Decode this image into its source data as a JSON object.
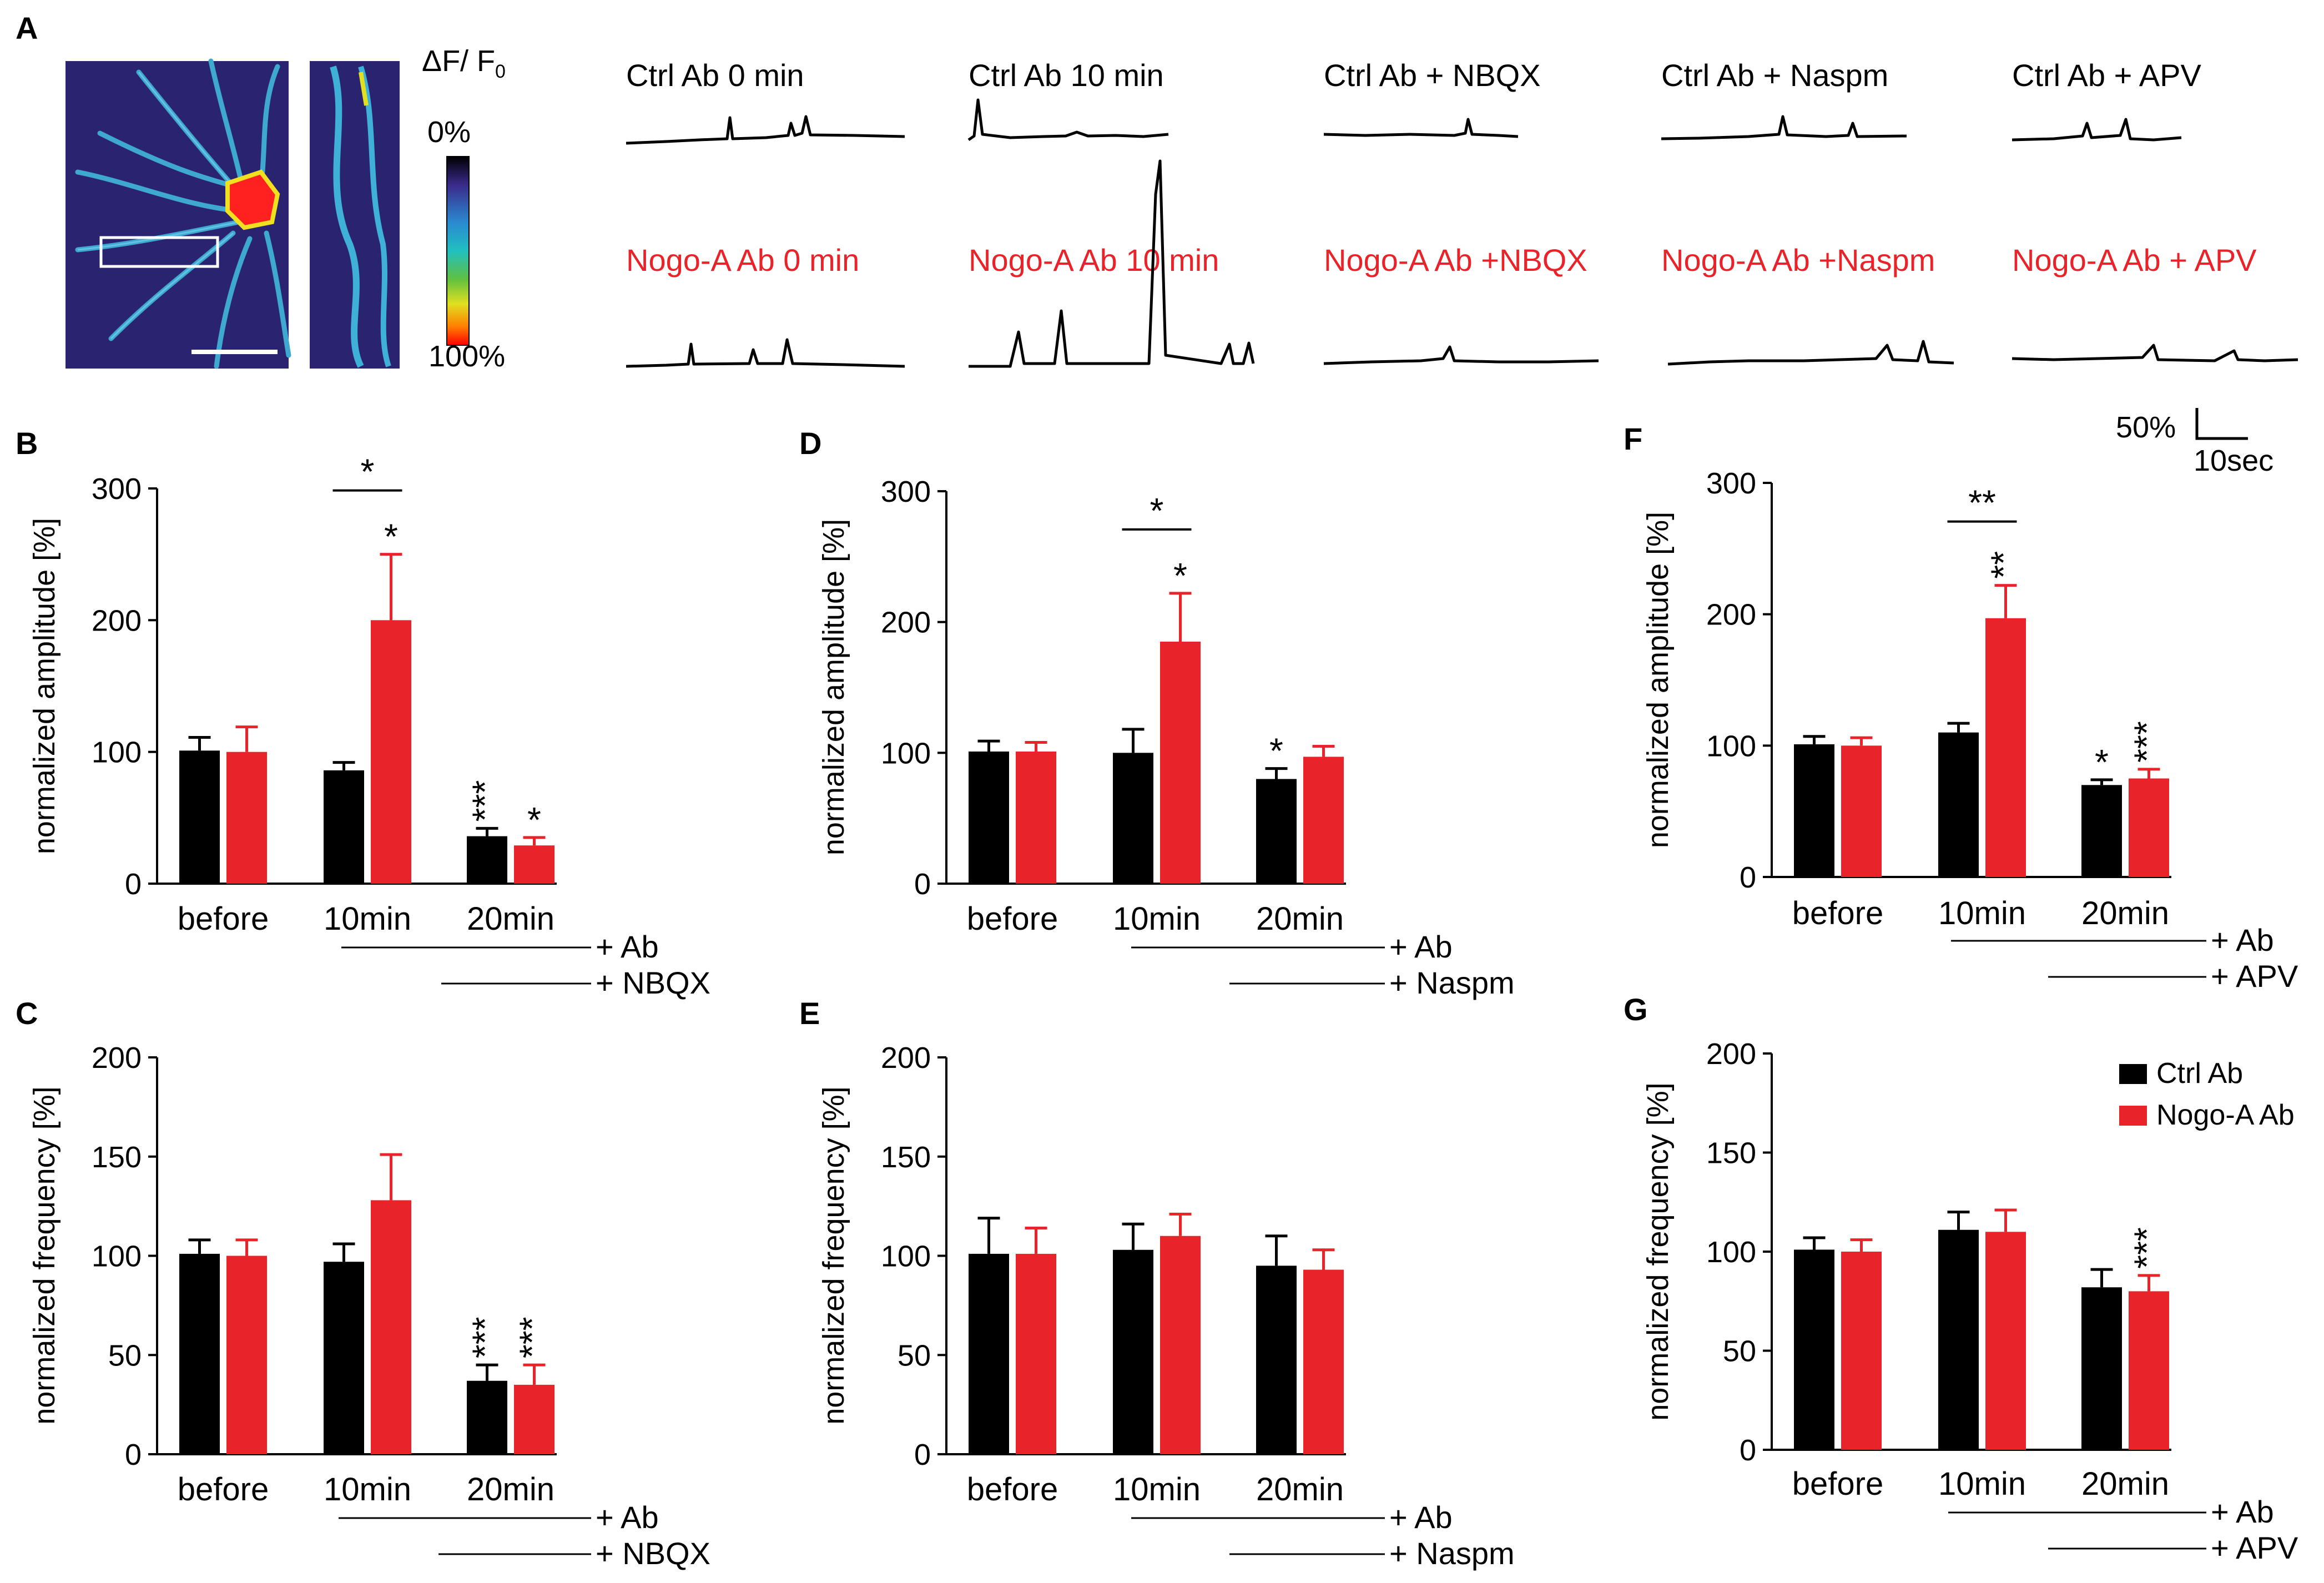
{
  "colors": {
    "ctrl": "#000000",
    "nogo": "#e8242a",
    "background": "#ffffff"
  },
  "panel_a": {
    "letter": "A",
    "colorbar": {
      "title_main": "ΔF/ F",
      "title_sub": "0",
      "top_label": "0%",
      "bottom_label": "100%"
    },
    "traces_ctrl": [
      "Ctrl Ab 0 min",
      "Ctrl Ab 10 min",
      "Ctrl Ab + NBQX",
      "Ctrl Ab + Naspm",
      "Ctrl Ab + APV"
    ],
    "traces_nogo": [
      "Nogo-A Ab 0 min",
      "Nogo-A Ab 10 min",
      "Nogo-A Ab +NBQX",
      "Nogo-A Ab +Naspm",
      "Nogo-A Ab + APV"
    ],
    "scale_bar": {
      "y_label": "50%",
      "x_label": "10sec"
    }
  },
  "legend": {
    "ctrl_label": "Ctrl Ab",
    "nogo_label": "Nogo-A Ab"
  },
  "chart_data": [
    {
      "panel": "B",
      "type": "bar",
      "ylabel": "normalized amplitude [%]",
      "ylim": [
        0,
        300
      ],
      "yticks": [
        0,
        100,
        200,
        300
      ],
      "categories": [
        "before",
        "10min",
        "20min"
      ],
      "series": [
        {
          "name": "Ctrl Ab",
          "values": [
            101,
            86,
            36
          ],
          "errors": [
            10,
            6,
            6
          ],
          "sig": [
            "",
            "",
            "***"
          ]
        },
        {
          "name": "Nogo-A Ab",
          "values": [
            100,
            200,
            29
          ],
          "errors": [
            19,
            50,
            6
          ],
          "sig": [
            "",
            "*",
            "*"
          ]
        }
      ],
      "bracket_sig": "*",
      "conditions": [
        "+ Ab",
        "+ NBQX"
      ]
    },
    {
      "panel": "C",
      "type": "bar",
      "ylabel": "normalized frequency [%]",
      "ylim": [
        0,
        200
      ],
      "yticks": [
        0,
        50,
        100,
        150,
        200
      ],
      "categories": [
        "before",
        "10min",
        "20min"
      ],
      "series": [
        {
          "name": "Ctrl Ab",
          "values": [
            101,
            97,
            37
          ],
          "errors": [
            7,
            9,
            8
          ],
          "sig": [
            "",
            "",
            "***"
          ]
        },
        {
          "name": "Nogo-A Ab",
          "values": [
            100,
            128,
            35
          ],
          "errors": [
            8,
            23,
            10
          ],
          "sig": [
            "",
            "",
            "***"
          ]
        }
      ],
      "bracket_sig": "",
      "conditions": [
        "+ Ab",
        "+ NBQX"
      ]
    },
    {
      "panel": "D",
      "type": "bar",
      "ylabel": "normalized amplitude [%]",
      "ylim": [
        0,
        300
      ],
      "yticks": [
        0,
        100,
        200,
        300
      ],
      "categories": [
        "before",
        "10min",
        "20min"
      ],
      "series": [
        {
          "name": "Ctrl Ab",
          "values": [
            101,
            100,
            80
          ],
          "errors": [
            8,
            18,
            8
          ],
          "sig": [
            "",
            "",
            "*"
          ]
        },
        {
          "name": "Nogo-A Ab",
          "values": [
            101,
            185,
            97
          ],
          "errors": [
            7,
            37,
            8
          ],
          "sig": [
            "",
            "*",
            ""
          ]
        }
      ],
      "bracket_sig": "*",
      "conditions": [
        "+ Ab",
        "+ Naspm"
      ]
    },
    {
      "panel": "E",
      "type": "bar",
      "ylabel": "normalized frequency [%]",
      "ylim": [
        0,
        200
      ],
      "yticks": [
        0,
        50,
        100,
        150,
        200
      ],
      "categories": [
        "before",
        "10min",
        "20min"
      ],
      "series": [
        {
          "name": "Ctrl Ab",
          "values": [
            101,
            103,
            95
          ],
          "errors": [
            18,
            13,
            15
          ],
          "sig": [
            "",
            "",
            ""
          ]
        },
        {
          "name": "Nogo-A Ab",
          "values": [
            101,
            110,
            93
          ],
          "errors": [
            13,
            11,
            10
          ],
          "sig": [
            "",
            "",
            ""
          ]
        }
      ],
      "bracket_sig": "",
      "conditions": [
        "+ Ab",
        "+ Naspm"
      ]
    },
    {
      "panel": "F",
      "type": "bar",
      "ylabel": "normalized amplitude [%]",
      "ylim": [
        0,
        300
      ],
      "yticks": [
        0,
        100,
        200,
        300
      ],
      "categories": [
        "before",
        "10min",
        "20min"
      ],
      "series": [
        {
          "name": "Ctrl Ab",
          "values": [
            101,
            110,
            70
          ],
          "errors": [
            6,
            7,
            4
          ],
          "sig": [
            "",
            "",
            "*"
          ]
        },
        {
          "name": "Nogo-A Ab",
          "values": [
            100,
            197,
            75
          ],
          "errors": [
            6,
            25,
            7
          ],
          "sig": [
            "",
            "**",
            "***"
          ]
        }
      ],
      "bracket_sig": "**",
      "conditions": [
        "+ Ab",
        "+ APV"
      ]
    },
    {
      "panel": "G",
      "type": "bar",
      "ylabel": "normalized frequency [%]",
      "ylim": [
        0,
        200
      ],
      "yticks": [
        0,
        50,
        100,
        150,
        200
      ],
      "categories": [
        "before",
        "10min",
        "20min"
      ],
      "series": [
        {
          "name": "Ctrl Ab",
          "values": [
            101,
            111,
            82
          ],
          "errors": [
            6,
            9,
            9
          ],
          "sig": [
            "",
            "",
            ""
          ]
        },
        {
          "name": "Nogo-A Ab",
          "values": [
            100,
            110,
            80
          ],
          "errors": [
            6,
            11,
            8
          ],
          "sig": [
            "",
            "",
            "***"
          ]
        }
      ],
      "bracket_sig": "",
      "conditions": [
        "+ Ab",
        "+ APV"
      ]
    }
  ]
}
